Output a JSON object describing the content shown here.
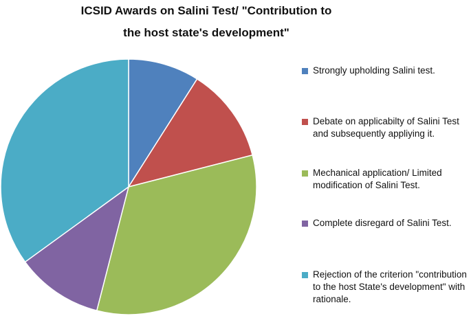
{
  "chart_data": {
    "type": "pie",
    "title_lines": [
      "ICSID Awards on Salini Test/ \"Contribution to",
      "the host state's development\""
    ],
    "categories": [
      "Strongly upholding Salini test.",
      "Debate on applicabilty of Salini Test and subsequently appliying it.",
      "Mechanical application/ Limited modification of Salini Test.",
      "Complete disregard of Salini Test.",
      "Rejection of the criterion \"contribution to the host State's development\" with rationale."
    ],
    "values": [
      9,
      12,
      33,
      11,
      35
    ],
    "colors": [
      "#4F81BD",
      "#C0504D",
      "#9BBB59",
      "#8064A2",
      "#4BACC6"
    ],
    "start_angle_deg": 0,
    "direction": "clockwise",
    "legend_position": "right"
  }
}
